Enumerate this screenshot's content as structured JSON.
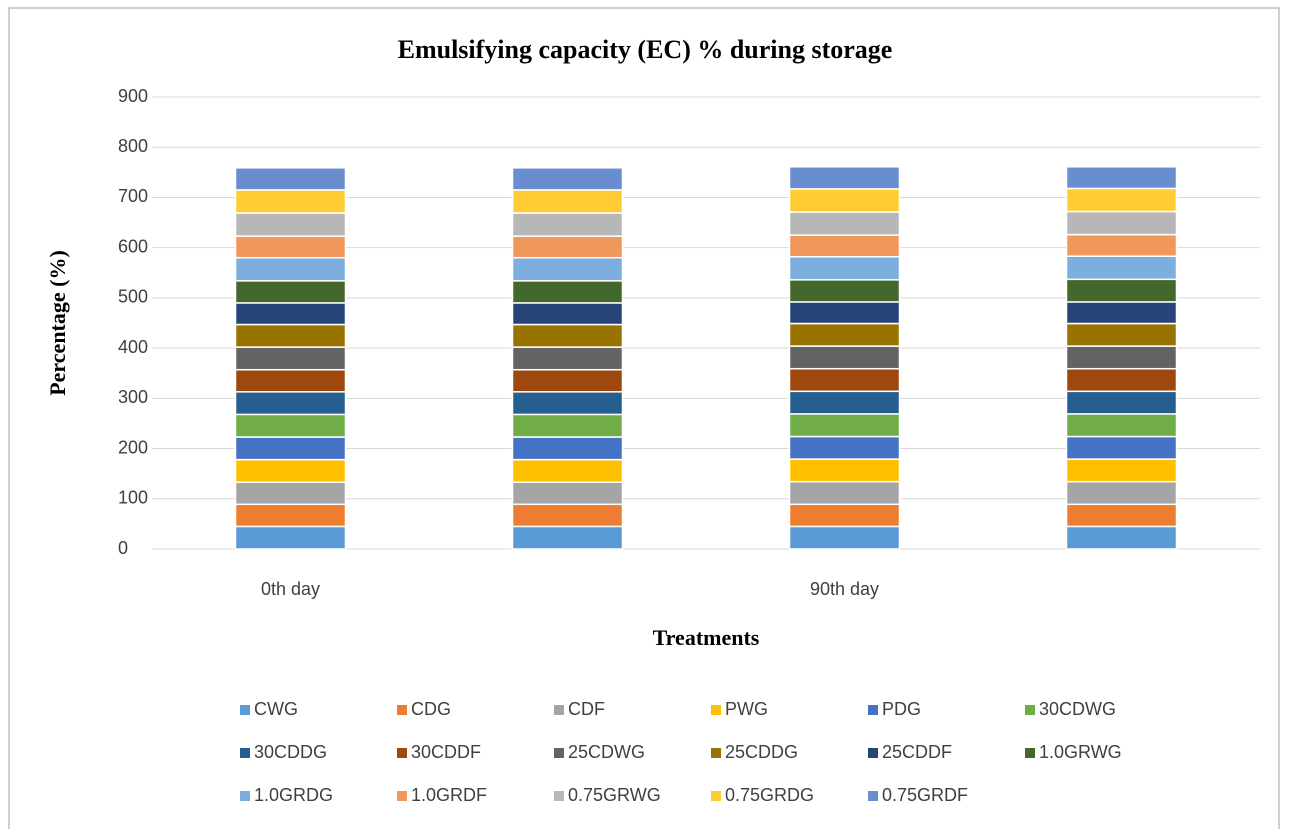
{
  "chart_data": {
    "type": "stacked_bar",
    "title": "Emulsifying capacity (EC) % during storage",
    "x_label": "Treatments",
    "y_label": "Percentage (%)",
    "categories": [
      "0th day",
      null,
      "90th day",
      null
    ],
    "ylim": [
      0,
      900
    ],
    "yticks": [
      0,
      100,
      200,
      300,
      400,
      500,
      600,
      700,
      800,
      900
    ],
    "grid": true,
    "series": [
      {
        "name": "CWG",
        "color": "#5b9bd5",
        "values": [
          45,
          45,
          45,
          45
        ]
      },
      {
        "name": "CDG",
        "color": "#ed7d31",
        "values": [
          44,
          44,
          44,
          44
        ]
      },
      {
        "name": "CDF",
        "color": "#a5a5a5",
        "values": [
          44,
          44,
          45,
          45
        ]
      },
      {
        "name": "PWG",
        "color": "#ffc000",
        "values": [
          45,
          45,
          45,
          45
        ]
      },
      {
        "name": "PDG",
        "color": "#4472c4",
        "values": [
          45,
          45,
          45,
          45
        ]
      },
      {
        "name": "30CDWG",
        "color": "#70ad47",
        "values": [
          45,
          45,
          45,
          45
        ]
      },
      {
        "name": "30CDDG",
        "color": "#255e91",
        "values": [
          45,
          45,
          45,
          45
        ]
      },
      {
        "name": "30CDDF",
        "color": "#9e480e",
        "values": [
          44,
          44,
          45,
          45
        ]
      },
      {
        "name": "25CDWG",
        "color": "#636363",
        "values": [
          45,
          45,
          45,
          45
        ]
      },
      {
        "name": "25CDDG",
        "color": "#997300",
        "values": [
          45,
          45,
          45,
          45
        ]
      },
      {
        "name": "25CDDF",
        "color": "#264478",
        "values": [
          43,
          43,
          43,
          43
        ]
      },
      {
        "name": "1.0GRWG",
        "color": "#43682b",
        "values": [
          44,
          44,
          44,
          45
        ]
      },
      {
        "name": "1.0GRDG",
        "color": "#7cafdd",
        "values": [
          46,
          46,
          46,
          46
        ]
      },
      {
        "name": "1.0GRDF",
        "color": "#f1975a",
        "values": [
          43,
          43,
          43,
          43
        ]
      },
      {
        "name": "0.75GRWG",
        "color": "#b7b7b7",
        "values": [
          46,
          46,
          46,
          46
        ]
      },
      {
        "name": "0.75GRDG",
        "color": "#ffcd33",
        "values": [
          46,
          46,
          46,
          46
        ]
      },
      {
        "name": "0.75GRDF",
        "color": "#698ed0",
        "values": [
          44,
          44,
          44,
          43
        ]
      }
    ]
  }
}
